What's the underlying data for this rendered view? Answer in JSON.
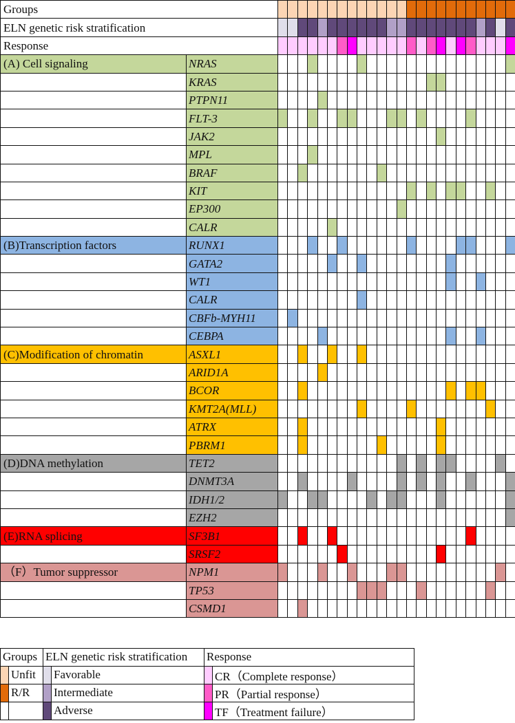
{
  "header_rows": {
    "groups": "Groups",
    "eln": "ELN genetic risk stratification",
    "response": "Response"
  },
  "colors": {
    "Unfit": "#FCD5B4",
    "R/R": "#E26B0A",
    "Favorable": "#E0DEEA",
    "Intermediate": "#B1A0C7",
    "Adverse": "#60497A",
    "CR": "#FFCCFF",
    "PR": "#FF5BC8",
    "TF": "#FF00FF"
  },
  "samples": {
    "groups": [
      "Unfit",
      "Unfit",
      "Unfit",
      "Unfit",
      "Unfit",
      "Unfit",
      "Unfit",
      "Unfit",
      "Unfit",
      "Unfit",
      "Unfit",
      "Unfit",
      "Unfit",
      "R/R",
      "R/R",
      "R/R",
      "R/R",
      "R/R",
      "R/R",
      "R/R",
      "R/R",
      "R/R",
      "R/R",
      "R/R"
    ],
    "eln": [
      "Favorable",
      "Favorable",
      "Adverse",
      "Adverse",
      "Intermediate",
      "Adverse",
      "Adverse",
      "Adverse",
      "Adverse",
      "Adverse",
      "Adverse",
      "Intermediate",
      "Intermediate",
      "Adverse",
      "Adverse",
      "Adverse",
      "Adverse",
      "Adverse",
      "Adverse",
      "Adverse",
      "Intermediate",
      "Adverse",
      "Favorable",
      "Adverse"
    ],
    "response": [
      "CR",
      "CR",
      "CR",
      "CR",
      "CR",
      "CR",
      "PR",
      "TF",
      "CR",
      "CR",
      "CR",
      "CR",
      "CR",
      "PR",
      "CR",
      "PR",
      "TF",
      "CR",
      "TF",
      "PR",
      "CR",
      "CR",
      "CR",
      "TF"
    ]
  },
  "sections": [
    {
      "label": "(A) Cell signaling",
      "color": "#C4D79B",
      "genes": [
        {
          "name": "NRAS",
          "mutated": [
            3,
            8,
            23
          ]
        },
        {
          "name": "KRAS",
          "mutated": [
            15,
            16
          ]
        },
        {
          "name": "PTPN11",
          "mutated": [
            4
          ]
        },
        {
          "name": "FLT-3",
          "mutated": [
            0,
            3,
            6,
            7,
            11,
            12,
            14,
            19
          ]
        },
        {
          "name": "JAK2",
          "mutated": [
            16
          ]
        },
        {
          "name": "MPL",
          "mutated": [
            3
          ]
        },
        {
          "name": "BRAF",
          "mutated": [
            2,
            10
          ]
        },
        {
          "name": "KIT",
          "mutated": [
            13,
            15,
            17,
            18,
            21
          ]
        },
        {
          "name": "EP300",
          "mutated": [
            12
          ]
        },
        {
          "name": "CALR",
          "mutated": [
            5
          ]
        }
      ]
    },
    {
      "label": "(B)Transcription factors",
      "color": "#8DB4E2",
      "genes": [
        {
          "name": "RUNX1",
          "mutated": [
            3,
            6,
            13,
            18,
            19,
            23
          ]
        },
        {
          "name": "GATA2",
          "mutated": [
            5,
            8,
            17
          ]
        },
        {
          "name": "WT1",
          "mutated": [
            17,
            20
          ]
        },
        {
          "name": "CALR",
          "mutated": [
            8
          ]
        },
        {
          "name": "CBFb-MYH11",
          "mutated": [
            1
          ]
        },
        {
          "name": "CEBPA",
          "mutated": [
            4,
            17,
            20
          ]
        }
      ]
    },
    {
      "label": "(C)Modification of chromatin",
      "color": "#FFC000",
      "genes": [
        {
          "name": "ASXL1",
          "mutated": [
            2,
            5,
            8
          ]
        },
        {
          "name": "ARID1A",
          "mutated": [
            4
          ]
        },
        {
          "name": "BCOR",
          "mutated": [
            2,
            17,
            19,
            20
          ]
        },
        {
          "name": "KMT2A(MLL)",
          "mutated": [
            8,
            13,
            21
          ]
        },
        {
          "name": "ATRX",
          "mutated": [
            2,
            16
          ]
        },
        {
          "name": "PBRM1",
          "mutated": [
            2,
            10,
            16
          ]
        }
      ]
    },
    {
      "label": "(D)DNA methylation",
      "color": "#A6A6A6",
      "genes": [
        {
          "name": "TET2",
          "mutated": [
            12,
            14,
            16,
            17,
            22
          ]
        },
        {
          "name": "DNMT3A",
          "mutated": [
            2,
            7,
            12,
            14,
            16,
            19,
            23
          ]
        },
        {
          "name": "IDH1/2",
          "mutated": [
            0,
            3,
            4,
            9,
            11,
            12,
            16,
            23
          ]
        },
        {
          "name": "EZH2",
          "mutated": [
            23
          ]
        }
      ]
    },
    {
      "label": "(E)RNA splicing",
      "color": "#FF0000",
      "genes": [
        {
          "name": "SF3B1",
          "mutated": [
            2,
            5,
            19
          ]
        },
        {
          "name": "SRSF2",
          "mutated": [
            6,
            16
          ]
        }
      ]
    },
    {
      "label": "（F）Tumor suppressor",
      "color": "#DA9694",
      "genes": [
        {
          "name": "NPM1",
          "mutated": [
            0,
            4,
            7,
            11,
            12,
            22
          ]
        },
        {
          "name": "TP53",
          "mutated": [
            8,
            9,
            10,
            14,
            21
          ]
        },
        {
          "name": "CSMD1",
          "mutated": [
            2
          ]
        }
      ]
    }
  ],
  "legend": {
    "groups": {
      "title": "Groups",
      "items": [
        "Unfit",
        "R/R"
      ]
    },
    "eln": {
      "title": "ELN genetic risk stratification",
      "items": [
        "Favorable",
        "Intermediate",
        "Adverse"
      ]
    },
    "response": {
      "title": "Response",
      "items": [
        {
          "key": "CR",
          "label": "CR（Complete response）"
        },
        {
          "key": "PR",
          "label": "PR（Partial response）"
        },
        {
          "key": "TF",
          "label": "TF（Treatment failure）"
        }
      ]
    }
  }
}
